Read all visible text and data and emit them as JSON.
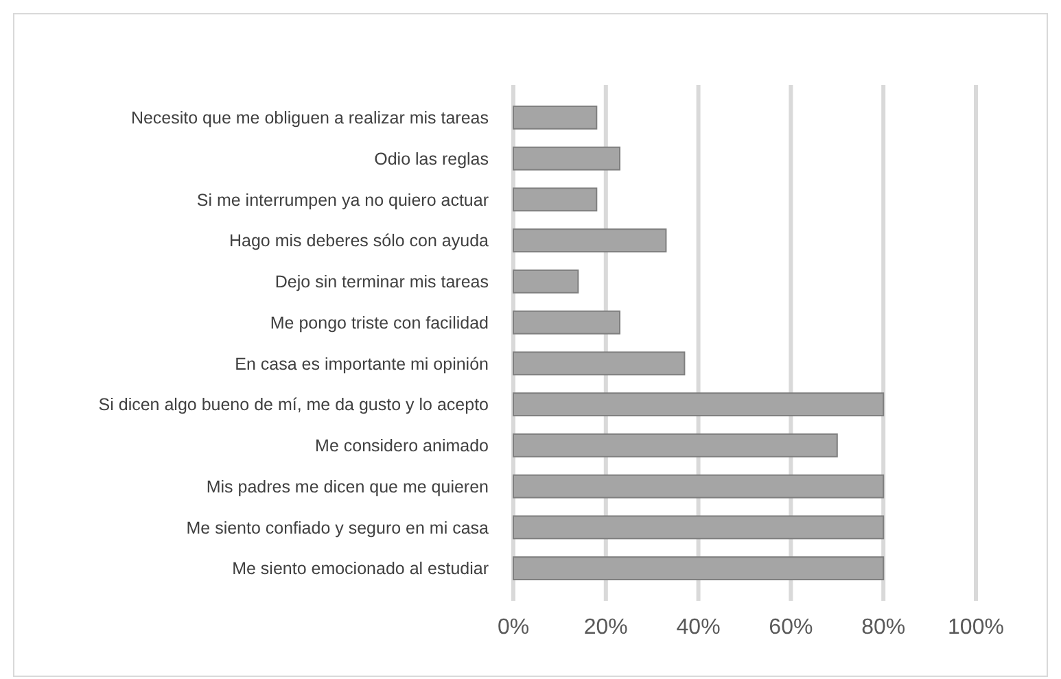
{
  "chart_data": {
    "type": "bar",
    "orientation": "horizontal",
    "categories": [
      "Necesito que me obliguen a realizar mis tareas",
      "Odio las reglas",
      "Si me interrumpen ya no quiero actuar",
      "Hago mis deberes sólo con ayuda",
      "Dejo sin terminar mis tareas",
      "Me pongo triste con facilidad",
      "En casa es importante mi opinión",
      "Si dicen algo bueno de mí, me da gusto y lo acepto",
      "Me considero animado",
      "Mis padres me dicen que me quieren",
      "Me siento confiado y seguro en mi casa",
      "Me siento emocionado al estudiar"
    ],
    "values": [
      18,
      23,
      18,
      33,
      14,
      23,
      37,
      80,
      70,
      80,
      80,
      80
    ],
    "color": "#a5a5a5",
    "xlim": [
      0,
      100
    ],
    "xticks": [
      {
        "value": 0,
        "label": "0%"
      },
      {
        "value": 20,
        "label": "20%"
      },
      {
        "value": 40,
        "label": "40%"
      },
      {
        "value": 60,
        "label": "60%"
      },
      {
        "value": 80,
        "label": "80%"
      },
      {
        "value": 100,
        "label": "100%"
      }
    ],
    "grid": "x"
  }
}
